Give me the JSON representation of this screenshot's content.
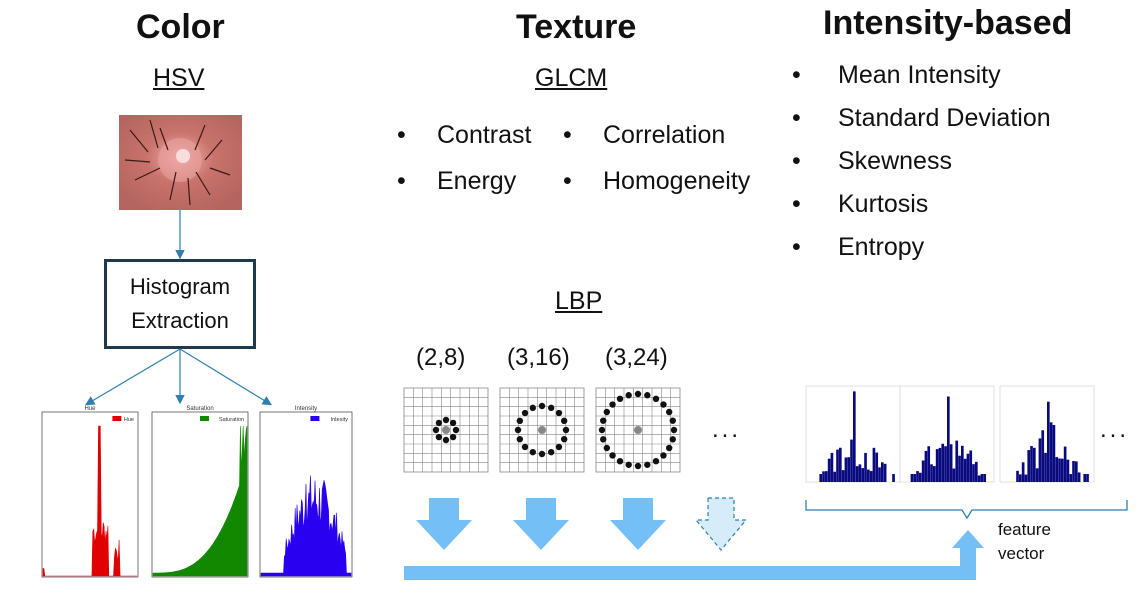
{
  "color": {
    "title": "Color",
    "subtitle": "HSV",
    "box_line1": "Histogram",
    "box_line2": "Extraction",
    "hist_panels": [
      {
        "name": "Hue",
        "legend": "Hue",
        "color": "#e00000"
      },
      {
        "name": "Saturation",
        "legend": "Saturation",
        "color": "#118800"
      },
      {
        "name": "Intensity",
        "legend": "Intesity",
        "color": "#2a00f0"
      }
    ]
  },
  "texture": {
    "title": "Texture",
    "glcm_label": "GLCM",
    "glcm_items": [
      "Contrast",
      "Correlation",
      "Energy",
      "Homogeneity"
    ],
    "lbp_label": "LBP",
    "lbp_params": [
      "(2,8)",
      "(3,16)",
      "(3,24)"
    ],
    "ellipsis": "..."
  },
  "intensity": {
    "title": "Intensity-based",
    "items": [
      "Mean Intensity",
      "Standard Deviation",
      "Skewness",
      "Kurtosis",
      "Entropy"
    ]
  },
  "feature": {
    "label_line1": "feature",
    "label_line2": "vector",
    "ellipsis": "..."
  },
  "colors": {
    "arrow_blue": "#74bff5",
    "navy": "#0a0a80",
    "connector": "#2e7fb0"
  }
}
